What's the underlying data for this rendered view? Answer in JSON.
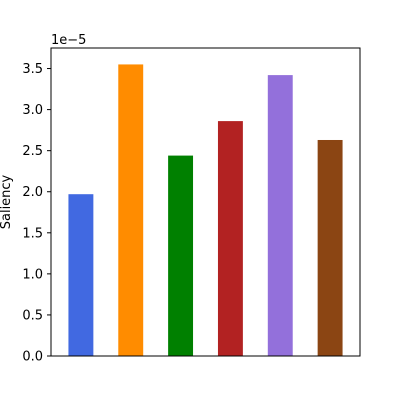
{
  "chart_data": {
    "type": "bar",
    "ylabel": "Saliency",
    "offset_label": "1e−5",
    "ylim": [
      0,
      3.75
    ],
    "yticks": [
      "0.0",
      "0.5",
      "1.0",
      "1.5",
      "2.0",
      "2.5",
      "3.0",
      "3.5"
    ],
    "ytick_values": [
      0.0,
      0.5,
      1.0,
      1.5,
      2.0,
      2.5,
      3.0,
      3.5
    ],
    "values": [
      1.97,
      3.55,
      2.44,
      2.86,
      3.42,
      2.63
    ],
    "colors": [
      "#4169e1",
      "#ff8c00",
      "#008000",
      "#b22222",
      "#9370db",
      "#8b4513"
    ],
    "grid": false
  }
}
